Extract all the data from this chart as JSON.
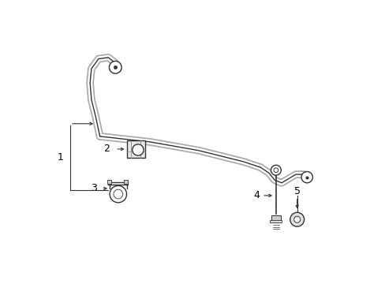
{
  "background_color": "#ffffff",
  "line_color": "#333333",
  "label_color": "#000000",
  "fig_width": 4.89,
  "fig_height": 3.6,
  "dpi": 100,
  "bar_lw_outer": 7.0,
  "bar_lw_white": 4.5,
  "bar_lw_edge": 1.0
}
